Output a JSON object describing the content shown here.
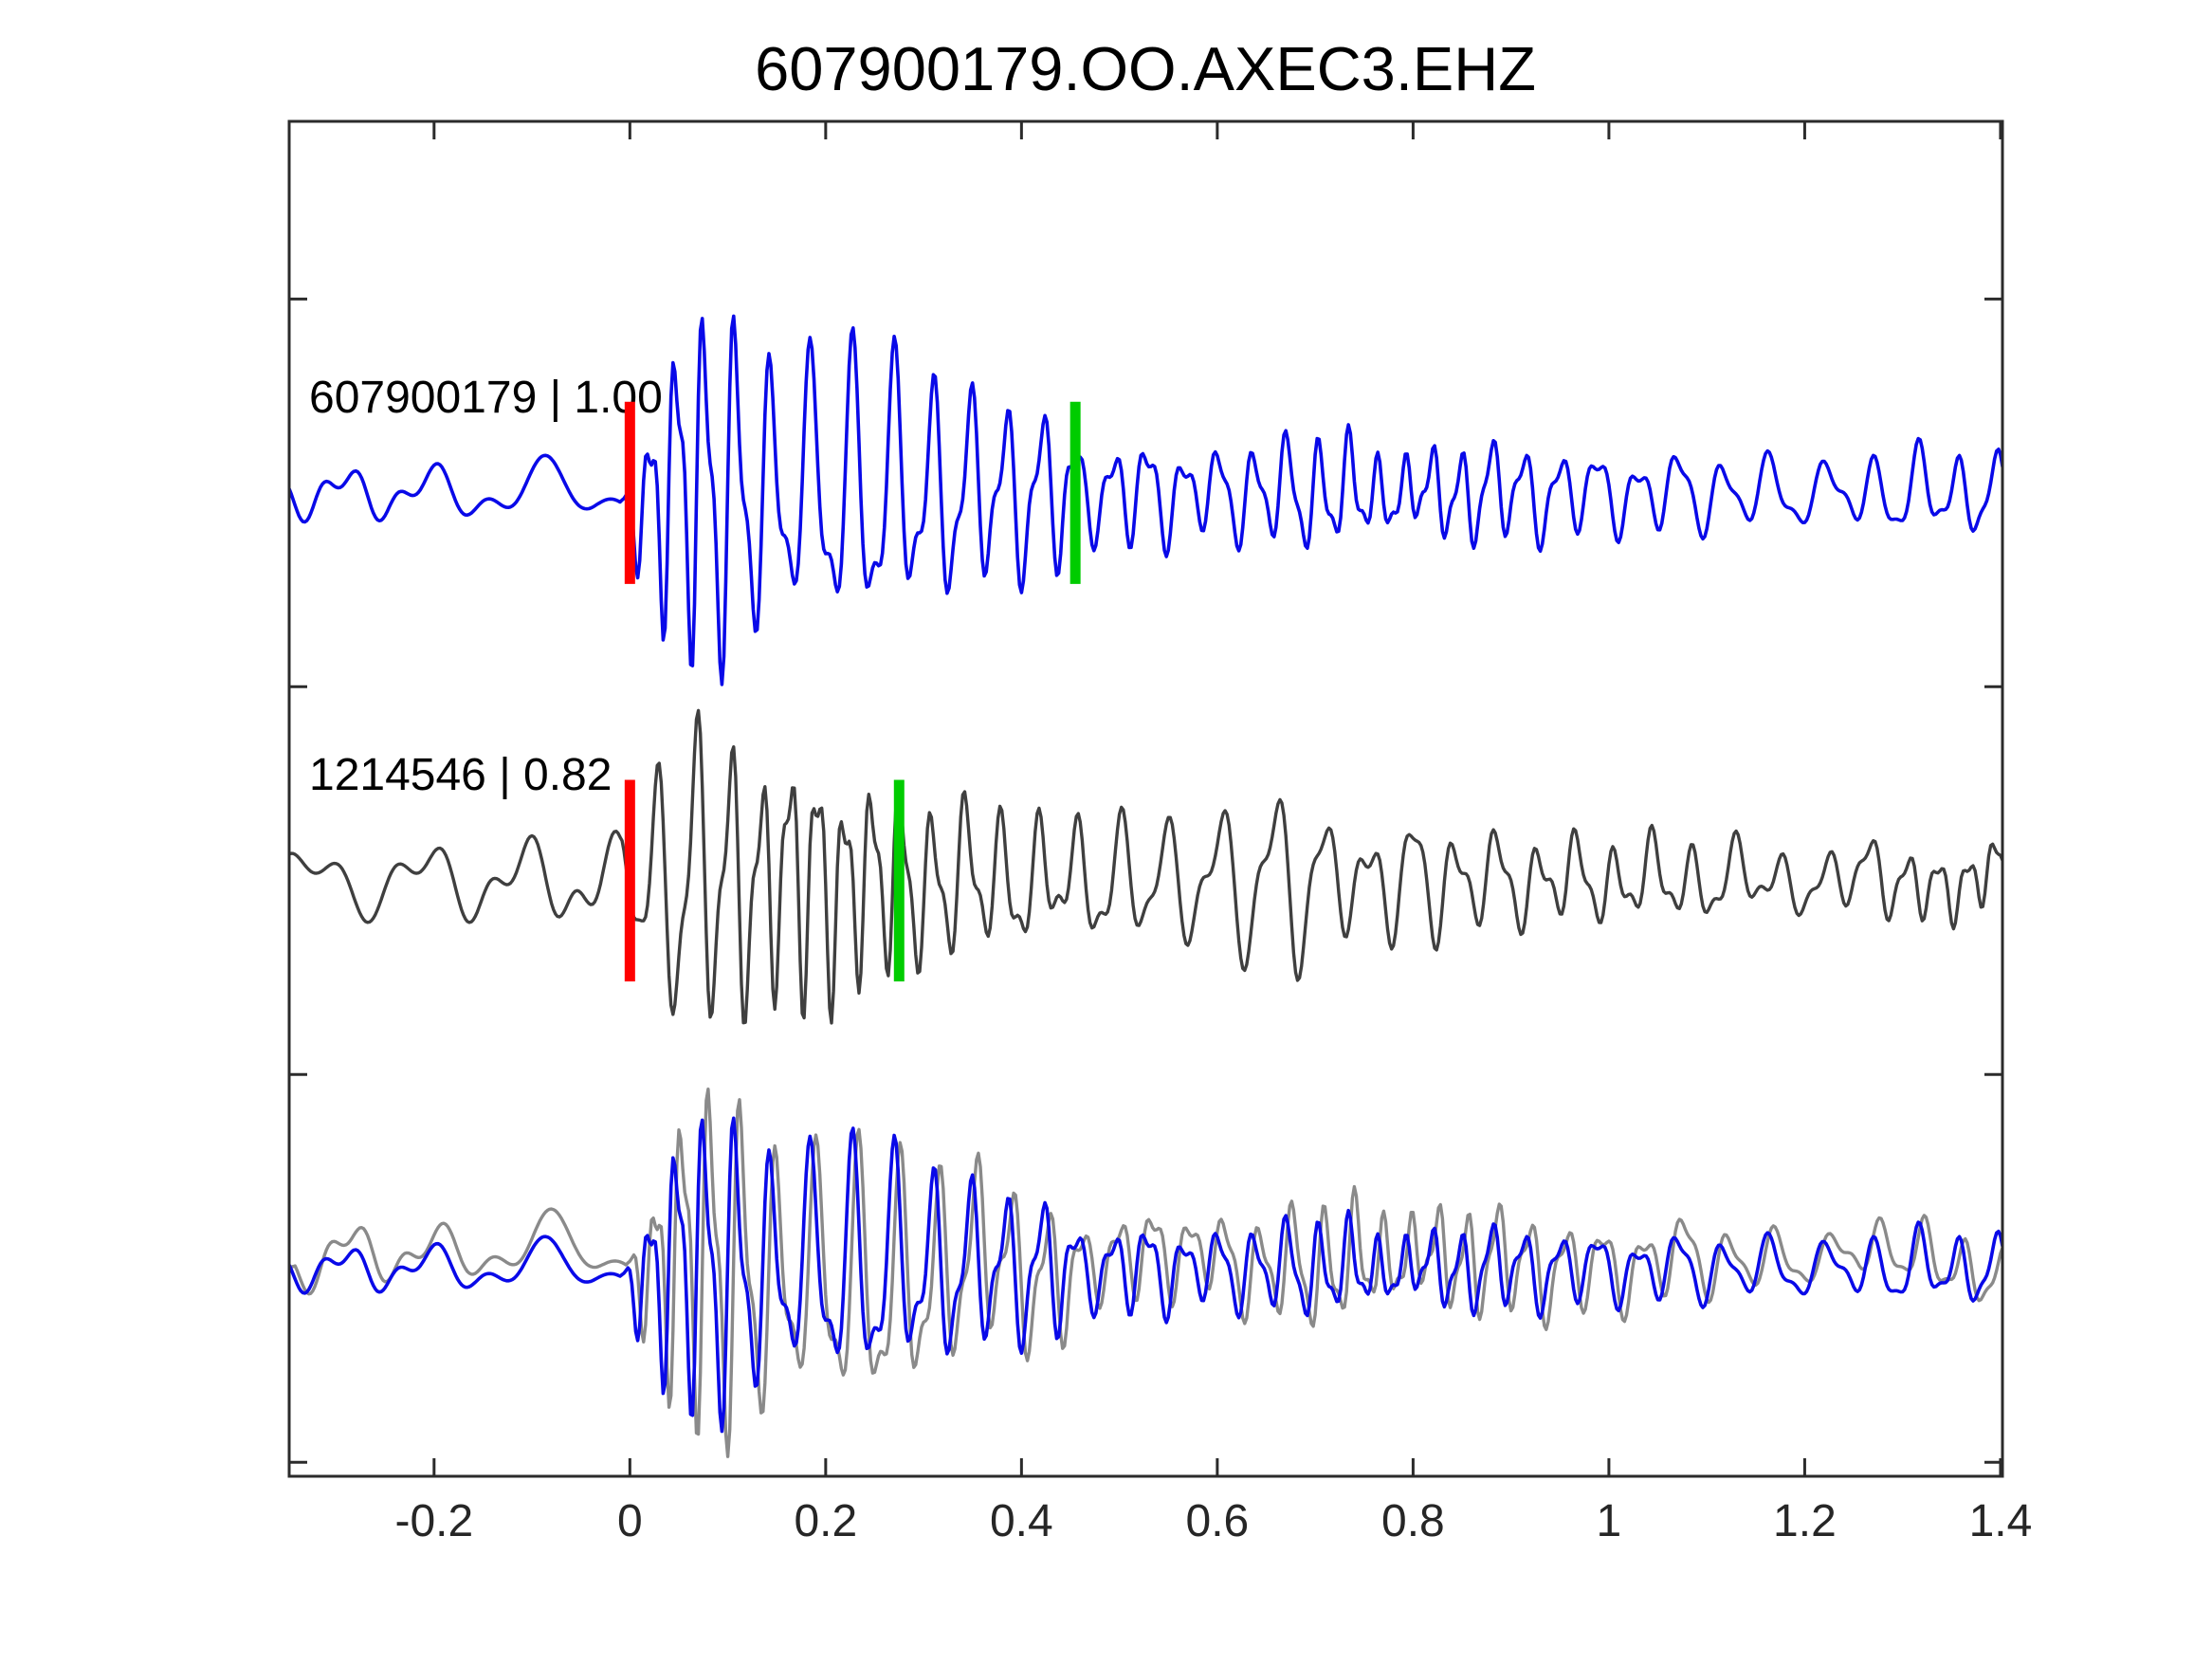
{
  "chart_data": {
    "type": "line",
    "title": "607900179.OO.AXEC3.EHZ",
    "xlabel": "",
    "ylabel": "",
    "xlim": [
      -0.348,
      1.402
    ],
    "ylim": [
      -2.536,
      0.958
    ],
    "grid": false,
    "legend": "none",
    "background": "#ffffff",
    "axis_color": "#2b2b2b",
    "tick_direction": "in",
    "x_ticks": [
      -0.2,
      0,
      0.2,
      0.4,
      0.6,
      0.8,
      1,
      1.2,
      1.4
    ],
    "x_tick_labels": [
      "-0.2",
      "0",
      "0.2",
      "0.4",
      "0.6",
      "0.8",
      "1",
      "1.2",
      "1.4"
    ],
    "y_ticks": [
      0.5,
      -0.5,
      -1.5,
      -2.5
    ],
    "y_tick_labels": [
      "",
      "",
      "",
      ""
    ],
    "sample_rate": 500,
    "series": [
      {
        "name": "template-trace",
        "label": "607900179 | 1.00",
        "template_id": "607900179",
        "correlation": "1.00",
        "color": "#0909e8",
        "line_width": 3.6,
        "offset": 0,
        "seed": 11,
        "carrier_freq": 28,
        "noise_freq": 10,
        "envelope": [
          [
            -0.36,
            0
          ],
          [
            -0.01,
            0
          ],
          [
            0.015,
            0.35
          ],
          [
            0.05,
            0.72
          ],
          [
            0.09,
            0.8
          ],
          [
            0.13,
            0.6
          ],
          [
            0.17,
            0.48
          ],
          [
            0.21,
            0.62
          ],
          [
            0.26,
            0.55
          ],
          [
            0.31,
            0.46
          ],
          [
            0.37,
            0.38
          ],
          [
            0.44,
            0.34
          ],
          [
            0.465,
            0.18
          ],
          [
            0.52,
            0.24
          ],
          [
            0.58,
            0.16
          ],
          [
            0.65,
            0.19
          ],
          [
            0.72,
            0.22
          ],
          [
            0.78,
            0.15
          ],
          [
            0.85,
            0.18
          ],
          [
            0.93,
            0.17
          ],
          [
            1.0,
            0.14
          ],
          [
            1.1,
            0.13
          ],
          [
            1.22,
            0.12
          ],
          [
            1.32,
            0.12
          ],
          [
            1.41,
            0.1
          ]
        ],
        "noise_env": [
          [
            -0.36,
            0.045
          ],
          [
            -0.15,
            0.05
          ],
          [
            -0.04,
            0.065
          ],
          [
            0.0,
            0.05
          ],
          [
            0.05,
            0.02
          ],
          [
            1.41,
            0.02
          ]
        ],
        "markers": [
          {
            "kind": "pick-marker",
            "color": "#ff0000",
            "t": 0.0,
            "half_height": 0.235
          },
          {
            "kind": "window-end-marker",
            "color": "#00cc00",
            "t": 0.455,
            "half_height": 0.235
          }
        ]
      },
      {
        "name": "detection-trace",
        "label": "1214546 | 0.82",
        "template_id": "1214546",
        "correlation": "0.82",
        "color": "#3f3f3f",
        "line_width": 3.4,
        "offset": -1,
        "seed": 23,
        "carrier_freq": 27,
        "noise_freq": 10,
        "envelope": [
          [
            -0.36,
            0
          ],
          [
            -0.01,
            0
          ],
          [
            0.02,
            0.4
          ],
          [
            0.06,
            0.6
          ],
          [
            0.1,
            0.57
          ],
          [
            0.14,
            0.48
          ],
          [
            0.18,
            0.51
          ],
          [
            0.23,
            0.42
          ],
          [
            0.27,
            0.38
          ],
          [
            0.3,
            0.31
          ],
          [
            0.35,
            0.33
          ],
          [
            0.4,
            0.28
          ],
          [
            0.47,
            0.24
          ],
          [
            0.53,
            0.26
          ],
          [
            0.6,
            0.2
          ],
          [
            0.68,
            0.26
          ],
          [
            0.75,
            0.18
          ],
          [
            0.83,
            0.22
          ],
          [
            0.92,
            0.18
          ],
          [
            1.0,
            0.16
          ],
          [
            1.1,
            0.17
          ],
          [
            1.2,
            0.13
          ],
          [
            1.3,
            0.14
          ],
          [
            1.41,
            0.11
          ]
        ],
        "noise_env": [
          [
            -0.36,
            0.06
          ],
          [
            -0.1,
            0.075
          ],
          [
            -0.03,
            0.09
          ],
          [
            0.02,
            0.05
          ],
          [
            0.07,
            0.025
          ],
          [
            1.41,
            0.025
          ]
        ],
        "markers": [
          {
            "kind": "pick-marker",
            "color": "#ff0000",
            "t": 0.0,
            "half_height": 0.26
          },
          {
            "kind": "window-end-marker",
            "color": "#00cc00",
            "t": 0.275,
            "half_height": 0.26
          }
        ]
      },
      {
        "name": "overlay-detection-gray",
        "label": "",
        "color": "#8a8a8a",
        "line_width": 3.4,
        "offset": -2,
        "derive_from": 0,
        "scale": 0.92,
        "lag_s": 0.006,
        "gain_wobble": 0.22,
        "wobble_amp": 0.06,
        "wobble_freq": 14,
        "wobble_seed": 7,
        "markers": []
      },
      {
        "name": "overlay-template-blue",
        "label": "",
        "color": "#0909e8",
        "line_width": 3.6,
        "offset": -2,
        "derive_from": 0,
        "scale": 0.85,
        "lag_s": 0,
        "gain_wobble": 0,
        "wobble_amp": 0,
        "wobble_freq": 1,
        "wobble_seed": 1,
        "markers": []
      }
    ]
  }
}
